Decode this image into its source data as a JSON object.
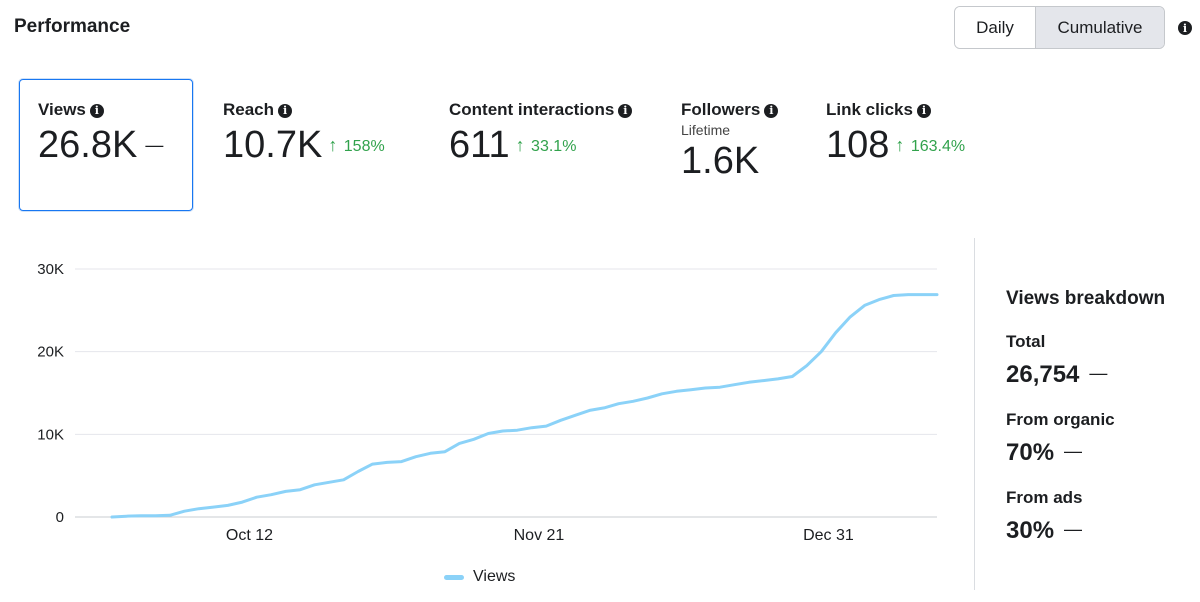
{
  "header": {
    "title": "Performance",
    "toggle": {
      "daily": "Daily",
      "cumulative": "Cumulative",
      "selected": "Cumulative"
    }
  },
  "metrics": [
    {
      "label": "Views",
      "value": "26.8K",
      "change": "",
      "dash": "—",
      "selected": true
    },
    {
      "label": "Reach",
      "value": "10.7K",
      "change": "158%",
      "arrow": "↑"
    },
    {
      "label": "Content interactions",
      "value": "611",
      "change": "33.1%",
      "arrow": "↑"
    },
    {
      "label": "Followers",
      "sublabel": "Lifetime",
      "value": "1.6K"
    },
    {
      "label": "Link clicks",
      "value": "108",
      "change": "163.4%",
      "arrow": "↑"
    }
  ],
  "breakdown": {
    "title": "Views breakdown",
    "total_label": "Total",
    "total_value": "26,754",
    "organic_label": "From organic",
    "organic_value": "70%",
    "ads_label": "From ads",
    "ads_value": "30%",
    "dash": "—"
  },
  "colors": {
    "accent": "#1877f2",
    "positive": "#31a24c",
    "series": "#8bd2f8"
  },
  "chart_data": {
    "type": "line",
    "ylim": [
      0,
      30000
    ],
    "yticks": [
      0,
      10000,
      20000,
      30000
    ],
    "ytick_labels": [
      "0",
      "10K",
      "20K",
      "30K"
    ],
    "xtick_labels": [
      "Oct 12",
      "Nov 21",
      "Dec 31"
    ],
    "grid": true,
    "legend": "bottom",
    "series": [
      {
        "name": "Views",
        "x": [
          "Sep 23",
          "Sep 25",
          "Sep 27",
          "Sep 29",
          "Oct 1",
          "Oct 3",
          "Oct 5",
          "Oct 7",
          "Oct 9",
          "Oct 11",
          "Oct 13",
          "Oct 15",
          "Oct 17",
          "Oct 19",
          "Oct 21",
          "Oct 23",
          "Oct 25",
          "Oct 27",
          "Oct 29",
          "Oct 31",
          "Nov 2",
          "Nov 4",
          "Nov 6",
          "Nov 8",
          "Nov 10",
          "Nov 12",
          "Nov 14",
          "Nov 16",
          "Nov 18",
          "Nov 20",
          "Nov 22",
          "Nov 24",
          "Nov 26",
          "Nov 28",
          "Nov 30",
          "Dec 2",
          "Dec 4",
          "Dec 6",
          "Dec 8",
          "Dec 10",
          "Dec 12",
          "Dec 14",
          "Dec 16",
          "Dec 18",
          "Dec 20",
          "Dec 22",
          "Dec 24",
          "Dec 26",
          "Dec 28",
          "Dec 30",
          "Jan 1",
          "Jan 3",
          "Jan 5",
          "Jan 7",
          "Jan 9",
          "Jan 11",
          "Jan 13",
          "Jan 15"
        ],
        "values": [
          0,
          100,
          150,
          150,
          200,
          700,
          1000,
          1200,
          1400,
          1800,
          2400,
          2700,
          3100,
          3300,
          3900,
          4200,
          4500,
          5500,
          6400,
          6600,
          6700,
          7300,
          7700,
          7900,
          8900,
          9400,
          10100,
          10400,
          10500,
          10800,
          11000,
          11700,
          12300,
          12900,
          13200,
          13700,
          14000,
          14400,
          14900,
          15200,
          15400,
          15600,
          15700,
          16000,
          16300,
          16500,
          16700,
          17000,
          18300,
          20000,
          22300,
          24200,
          25600,
          26300,
          26800,
          26900,
          26900,
          26900
        ]
      }
    ]
  }
}
